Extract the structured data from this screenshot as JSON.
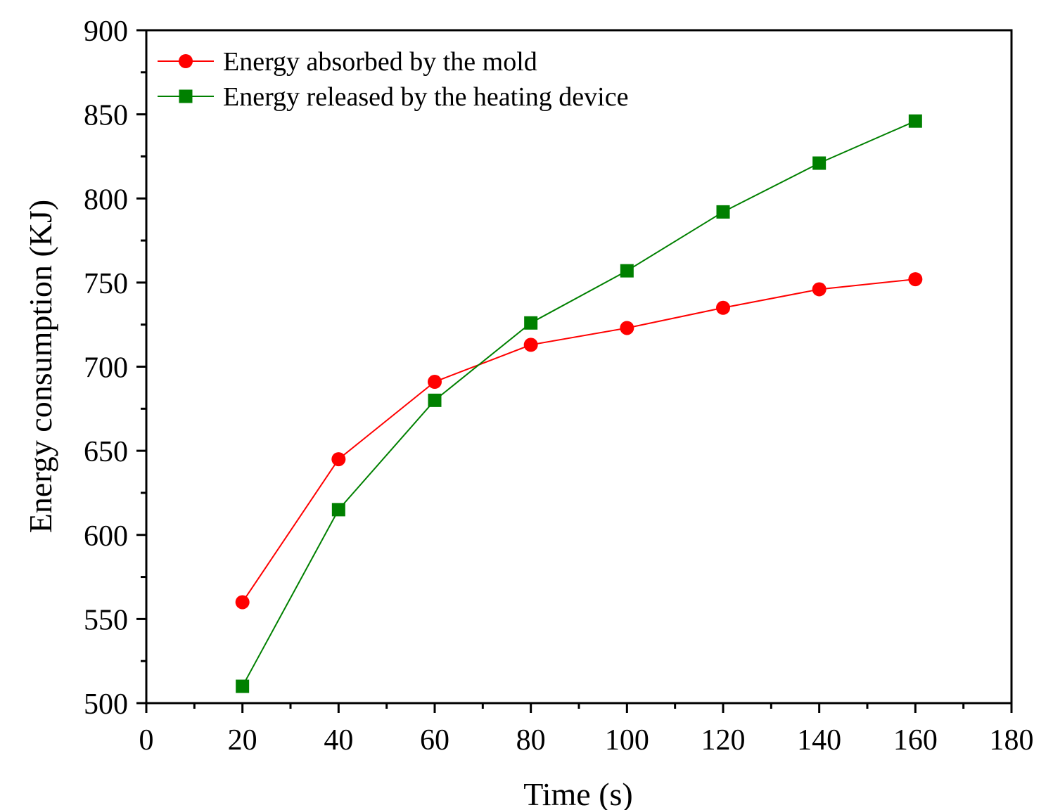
{
  "chart_data": {
    "type": "line",
    "title": "",
    "xlabel": "Time (s)",
    "ylabel": "Energy consumption (KJ)",
    "xlim": [
      0,
      180
    ],
    "ylim": [
      500,
      900
    ],
    "xticks": [
      0,
      20,
      40,
      60,
      80,
      100,
      120,
      140,
      160,
      180
    ],
    "yticks": [
      500,
      550,
      600,
      650,
      700,
      750,
      800,
      850,
      900
    ],
    "xtick_labels": [
      "0",
      "20",
      "40",
      "60",
      "80",
      "100",
      "120",
      "140",
      "160",
      "180"
    ],
    "ytick_labels": [
      "500",
      "550",
      "600",
      "650",
      "700",
      "750",
      "800",
      "850",
      "900"
    ],
    "grid": false,
    "legend_position": "top-left",
    "x": [
      20,
      40,
      60,
      80,
      100,
      120,
      140,
      160
    ],
    "series": [
      {
        "name": "Energy absorbed by the mold",
        "marker": "circle",
        "color": "#ff0000",
        "values": [
          560,
          645,
          691,
          713,
          723,
          735,
          746,
          752
        ]
      },
      {
        "name": "Energy released by the heating device",
        "marker": "square",
        "color": "#008000",
        "values": [
          510,
          615,
          680,
          726,
          757,
          792,
          821,
          846
        ]
      }
    ]
  }
}
